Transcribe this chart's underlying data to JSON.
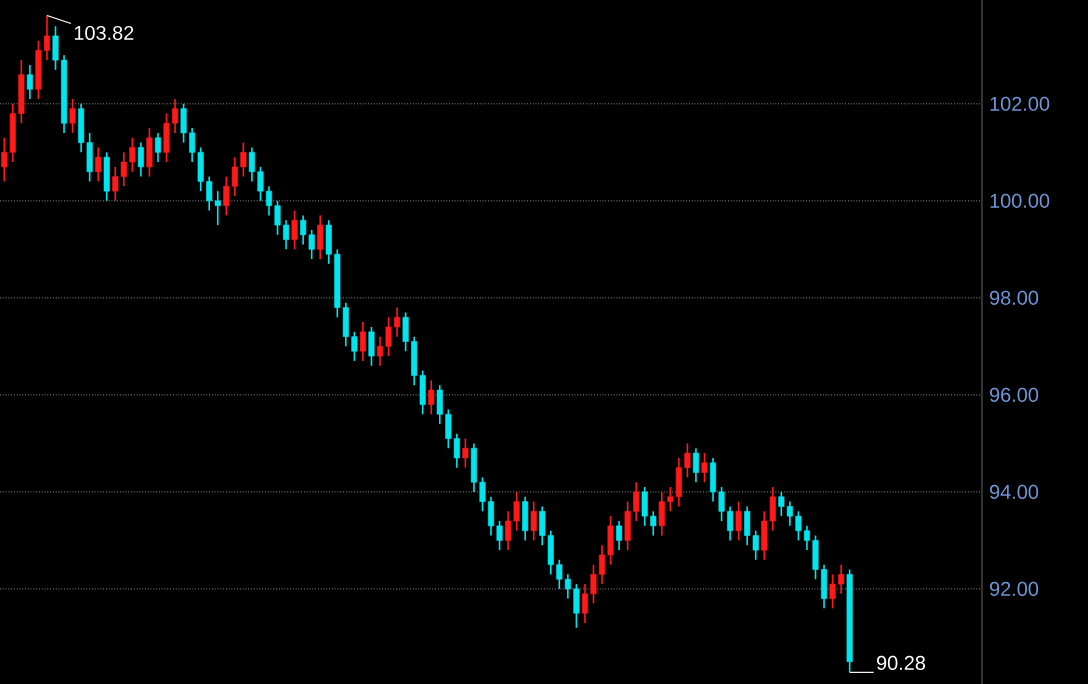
{
  "chart_data": {
    "type": "candlestick",
    "categories": [
      null,
      null,
      null,
      null,
      null,
      null,
      null,
      null,
      null,
      null,
      null,
      null,
      null,
      null,
      null,
      null,
      null,
      null,
      null,
      null,
      null,
      null,
      null,
      null,
      null,
      null,
      null,
      null,
      null,
      null,
      null,
      null,
      null,
      null,
      null,
      null,
      null,
      null,
      null,
      null,
      null,
      null,
      null,
      null,
      null,
      null,
      null,
      null,
      null,
      null,
      null,
      null,
      null,
      null,
      null,
      null,
      null,
      null,
      null,
      null,
      null,
      null,
      null,
      null,
      null,
      null,
      null,
      null,
      null,
      null,
      null,
      null,
      null,
      null,
      null,
      null,
      null,
      null,
      null,
      null,
      null,
      null,
      null,
      null,
      null,
      null,
      null,
      null,
      null,
      null,
      null,
      null,
      null,
      null,
      null,
      null,
      null,
      null,
      null,
      null,
      null,
      null,
      null,
      null,
      null,
      null,
      null,
      null,
      null,
      null,
      null,
      null,
      null,
      null,
      null
    ],
    "ohlc": [
      [
        100.7,
        101.3,
        100.4,
        101.0
      ],
      [
        101.0,
        102.0,
        100.8,
        101.8
      ],
      [
        101.8,
        102.9,
        101.6,
        102.6
      ],
      [
        102.6,
        102.8,
        102.1,
        102.3
      ],
      [
        102.3,
        103.3,
        102.1,
        103.1
      ],
      [
        103.1,
        103.82,
        102.9,
        103.4
      ],
      [
        103.4,
        103.6,
        102.7,
        102.9
      ],
      [
        102.9,
        103.0,
        101.4,
        101.6
      ],
      [
        101.6,
        102.1,
        101.4,
        101.9
      ],
      [
        101.9,
        102.0,
        101.0,
        101.2
      ],
      [
        101.2,
        101.4,
        100.4,
        100.6
      ],
      [
        100.6,
        101.1,
        100.4,
        100.9
      ],
      [
        100.9,
        101.0,
        100.0,
        100.2
      ],
      [
        100.2,
        100.7,
        100.0,
        100.5
      ],
      [
        100.5,
        101.0,
        100.3,
        100.8
      ],
      [
        100.8,
        101.3,
        100.6,
        101.1
      ],
      [
        101.1,
        101.2,
        100.5,
        100.7
      ],
      [
        100.7,
        101.5,
        100.5,
        101.3
      ],
      [
        101.3,
        101.4,
        100.8,
        101.0
      ],
      [
        101.0,
        101.8,
        100.8,
        101.6
      ],
      [
        101.6,
        102.1,
        101.4,
        101.9
      ],
      [
        101.9,
        102.0,
        101.2,
        101.4
      ],
      [
        101.4,
        101.5,
        100.8,
        101.0
      ],
      [
        101.0,
        101.1,
        100.2,
        100.4
      ],
      [
        100.4,
        100.5,
        99.8,
        100.0
      ],
      [
        100.0,
        100.2,
        99.5,
        99.9
      ],
      [
        99.9,
        100.5,
        99.7,
        100.3
      ],
      [
        100.3,
        100.9,
        100.1,
        100.7
      ],
      [
        100.7,
        101.2,
        100.5,
        101.0
      ],
      [
        101.0,
        101.1,
        100.4,
        100.6
      ],
      [
        100.6,
        100.7,
        100.0,
        100.2
      ],
      [
        100.2,
        100.3,
        99.7,
        99.9
      ],
      [
        99.9,
        100.0,
        99.3,
        99.5
      ],
      [
        99.5,
        99.6,
        99.0,
        99.2
      ],
      [
        99.2,
        99.8,
        99.0,
        99.6
      ],
      [
        99.6,
        99.7,
        99.1,
        99.3
      ],
      [
        99.3,
        99.4,
        98.8,
        99.0
      ],
      [
        99.0,
        99.7,
        98.8,
        99.5
      ],
      [
        99.5,
        99.6,
        98.7,
        98.9
      ],
      [
        98.9,
        99.0,
        97.6,
        97.8
      ],
      [
        97.8,
        97.9,
        97.0,
        97.2
      ],
      [
        97.2,
        97.3,
        96.7,
        96.9
      ],
      [
        96.9,
        97.5,
        96.7,
        97.3
      ],
      [
        97.3,
        97.4,
        96.6,
        96.8
      ],
      [
        96.8,
        97.2,
        96.6,
        97.0
      ],
      [
        97.0,
        97.6,
        96.8,
        97.4
      ],
      [
        97.4,
        97.8,
        97.2,
        97.6
      ],
      [
        97.6,
        97.7,
        96.9,
        97.1
      ],
      [
        97.1,
        97.2,
        96.2,
        96.4
      ],
      [
        96.4,
        96.5,
        95.6,
        95.8
      ],
      [
        95.8,
        96.3,
        95.6,
        96.1
      ],
      [
        96.1,
        96.2,
        95.4,
        95.6
      ],
      [
        95.6,
        95.7,
        94.9,
        95.1
      ],
      [
        95.1,
        95.2,
        94.5,
        94.7
      ],
      [
        94.7,
        95.1,
        94.5,
        94.9
      ],
      [
        94.9,
        95.0,
        94.0,
        94.2
      ],
      [
        94.2,
        94.3,
        93.6,
        93.8
      ],
      [
        93.8,
        93.9,
        93.1,
        93.3
      ],
      [
        93.3,
        93.4,
        92.8,
        93.0
      ],
      [
        93.0,
        93.6,
        92.8,
        93.4
      ],
      [
        93.4,
        94.0,
        93.2,
        93.8
      ],
      [
        93.8,
        93.9,
        93.0,
        93.2
      ],
      [
        93.2,
        93.8,
        93.0,
        93.6
      ],
      [
        93.6,
        93.7,
        92.9,
        93.1
      ],
      [
        93.1,
        93.2,
        92.3,
        92.5
      ],
      [
        92.5,
        92.6,
        92.0,
        92.2
      ],
      [
        92.2,
        92.3,
        91.8,
        92.0
      ],
      [
        92.0,
        92.1,
        91.2,
        91.5
      ],
      [
        91.5,
        92.1,
        91.3,
        91.9
      ],
      [
        91.9,
        92.5,
        91.7,
        92.3
      ],
      [
        92.3,
        92.9,
        92.1,
        92.7
      ],
      [
        92.7,
        93.5,
        92.5,
        93.3
      ],
      [
        93.3,
        93.4,
        92.8,
        93.0
      ],
      [
        93.0,
        93.8,
        92.8,
        93.6
      ],
      [
        93.6,
        94.2,
        93.4,
        94.0
      ],
      [
        94.0,
        94.1,
        93.3,
        93.5
      ],
      [
        93.5,
        93.6,
        93.1,
        93.3
      ],
      [
        93.3,
        94.0,
        93.1,
        93.8
      ],
      [
        93.8,
        94.1,
        93.6,
        93.9
      ],
      [
        93.9,
        94.7,
        93.7,
        94.5
      ],
      [
        94.5,
        95.0,
        94.3,
        94.8
      ],
      [
        94.8,
        94.9,
        94.2,
        94.4
      ],
      [
        94.4,
        94.8,
        94.2,
        94.6
      ],
      [
        94.6,
        94.7,
        93.8,
        94.0
      ],
      [
        94.0,
        94.1,
        93.4,
        93.6
      ],
      [
        93.6,
        93.7,
        93.0,
        93.2
      ],
      [
        93.2,
        93.8,
        93.0,
        93.6
      ],
      [
        93.6,
        93.7,
        92.9,
        93.1
      ],
      [
        93.1,
        93.2,
        92.6,
        92.8
      ],
      [
        92.8,
        93.6,
        92.6,
        93.4
      ],
      [
        93.4,
        94.1,
        93.2,
        93.9
      ],
      [
        93.9,
        94.0,
        93.5,
        93.7
      ],
      [
        93.7,
        93.8,
        93.3,
        93.5
      ],
      [
        93.5,
        93.6,
        93.0,
        93.2
      ],
      [
        93.2,
        93.3,
        92.8,
        93.0
      ],
      [
        93.0,
        93.1,
        92.2,
        92.4
      ],
      [
        92.4,
        92.5,
        91.6,
        91.8
      ],
      [
        91.8,
        92.3,
        91.6,
        92.1
      ],
      [
        92.1,
        92.5,
        91.9,
        92.3
      ],
      [
        92.3,
        92.4,
        90.28,
        90.5
      ],
      null,
      null,
      null,
      null,
      null,
      null,
      null,
      null,
      null,
      null,
      null,
      null,
      null,
      null,
      null
    ],
    "colors": [
      "#ff1a1a",
      "#ff1a1a",
      "#ff1a1a",
      "#00e5ee",
      "#ff1a1a",
      "#ff1a1a",
      "#00e5ee",
      "#00e5ee",
      "#ff1a1a",
      "#00e5ee",
      "#00e5ee",
      "#ff1a1a",
      "#00e5ee",
      "#ff1a1a",
      "#ff1a1a",
      "#ff1a1a",
      "#00e5ee",
      "#ff1a1a",
      "#00e5ee",
      "#ff1a1a",
      "#ff1a1a",
      "#00e5ee",
      "#00e5ee",
      "#00e5ee",
      "#00e5ee",
      "#00e5ee",
      "#ff1a1a",
      "#ff1a1a",
      "#ff1a1a",
      "#00e5ee",
      "#00e5ee",
      "#00e5ee",
      "#00e5ee",
      "#00e5ee",
      "#ff1a1a",
      "#00e5ee",
      "#00e5ee",
      "#ff1a1a",
      "#00e5ee",
      "#00e5ee",
      "#00e5ee",
      "#00e5ee",
      "#ff1a1a",
      "#00e5ee",
      "#ff1a1a",
      "#ff1a1a",
      "#ff1a1a",
      "#00e5ee",
      "#00e5ee",
      "#00e5ee",
      "#ff1a1a",
      "#00e5ee",
      "#00e5ee",
      "#00e5ee",
      "#ff1a1a",
      "#00e5ee",
      "#00e5ee",
      "#00e5ee",
      "#00e5ee",
      "#ff1a1a",
      "#ff1a1a",
      "#00e5ee",
      "#ff1a1a",
      "#00e5ee",
      "#00e5ee",
      "#00e5ee",
      "#00e5ee",
      "#00e5ee",
      "#ff1a1a",
      "#ff1a1a",
      "#ff1a1a",
      "#ff1a1a",
      "#00e5ee",
      "#ff1a1a",
      "#ff1a1a",
      "#00e5ee",
      "#00e5ee",
      "#ff1a1a",
      "#ff1a1a",
      "#ff1a1a",
      "#ff1a1a",
      "#00e5ee",
      "#ff1a1a",
      "#00e5ee",
      "#00e5ee",
      "#00e5ee",
      "#ff1a1a",
      "#00e5ee",
      "#00e5ee",
      "#ff1a1a",
      "#ff1a1a",
      "#00e5ee",
      "#00e5ee",
      "#00e5ee",
      "#00e5ee",
      "#00e5ee",
      "#00e5ee",
      "#ff1a1a",
      "#ff1a1a",
      "#00e5ee",
      null,
      null,
      null,
      null,
      null,
      null,
      null,
      null,
      null,
      null,
      null,
      null,
      null,
      null,
      null
    ],
    "ylim": [
      90.04,
      104.14
    ],
    "yticks": [
      {
        "value": 92,
        "label": "92.00"
      },
      {
        "value": 94,
        "label": "94.00"
      },
      {
        "value": 96,
        "label": "96.00"
      },
      {
        "value": 98,
        "label": "98.00"
      },
      {
        "value": 100,
        "label": "100.00"
      },
      {
        "value": 102,
        "label": "102.00"
      }
    ],
    "grid": "y",
    "tick_labels": "y",
    "annotations": [
      "103.82",
      "90.28"
    ]
  }
}
